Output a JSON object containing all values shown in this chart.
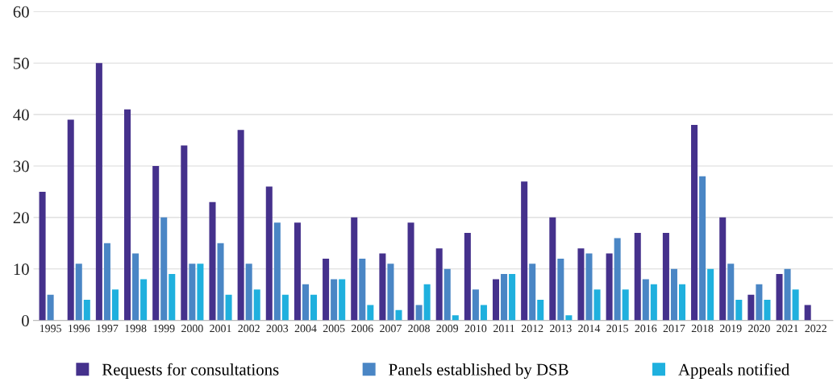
{
  "chart_data": {
    "type": "bar",
    "categories": [
      "1995",
      "1996",
      "1997",
      "1998",
      "1999",
      "2000",
      "2001",
      "2002",
      "2003",
      "2004",
      "2005",
      "2006",
      "2007",
      "2008",
      "2009",
      "2010",
      "2011",
      "2012",
      "2013",
      "2014",
      "2015",
      "2016",
      "2017",
      "2018",
      "2019",
      "2020",
      "2021",
      "2022"
    ],
    "series": [
      {
        "name": "Requests for consultations",
        "color": "#45318c",
        "values": [
          25,
          39,
          50,
          41,
          30,
          34,
          23,
          37,
          26,
          19,
          12,
          20,
          13,
          19,
          14,
          17,
          8,
          27,
          20,
          14,
          13,
          17,
          17,
          38,
          20,
          5,
          9,
          3
        ]
      },
      {
        "name": "Panels established by DSB",
        "color": "#4a86c5",
        "values": [
          5,
          11,
          15,
          13,
          20,
          11,
          15,
          11,
          19,
          7,
          8,
          12,
          11,
          3,
          10,
          6,
          9,
          11,
          12,
          13,
          16,
          8,
          10,
          28,
          11,
          7,
          10,
          0
        ]
      },
      {
        "name": "Appeals notified",
        "color": "#1fb0de",
        "values": [
          0,
          4,
          6,
          8,
          9,
          11,
          5,
          6,
          5,
          5,
          8,
          3,
          2,
          7,
          1,
          3,
          9,
          4,
          1,
          6,
          6,
          7,
          7,
          10,
          4,
          4,
          6,
          0
        ]
      }
    ],
    "ylim": [
      0,
      60
    ],
    "yticks": [
      0,
      10,
      20,
      30,
      40,
      50,
      60
    ],
    "grid": "y",
    "legend": "bottom"
  }
}
